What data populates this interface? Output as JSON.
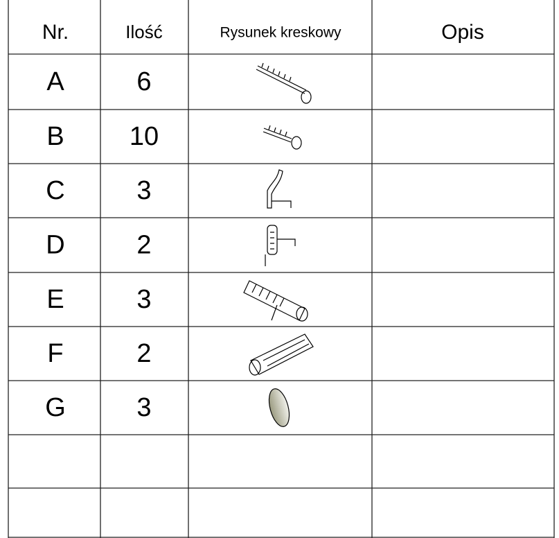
{
  "table": {
    "header": [
      "Nr.",
      "Ilość",
      "Rysunek kreskowy",
      "Opis"
    ],
    "rows": [
      {
        "nr": "A",
        "qty": "6"
      },
      {
        "nr": "B",
        "qty": "10"
      },
      {
        "nr": "C",
        "qty": "3"
      },
      {
        "nr": "D",
        "qty": "2"
      },
      {
        "nr": "E",
        "qty": "3"
      },
      {
        "nr": "F",
        "qty": "2"
      },
      {
        "nr": "G",
        "qty": "3"
      }
    ]
  }
}
